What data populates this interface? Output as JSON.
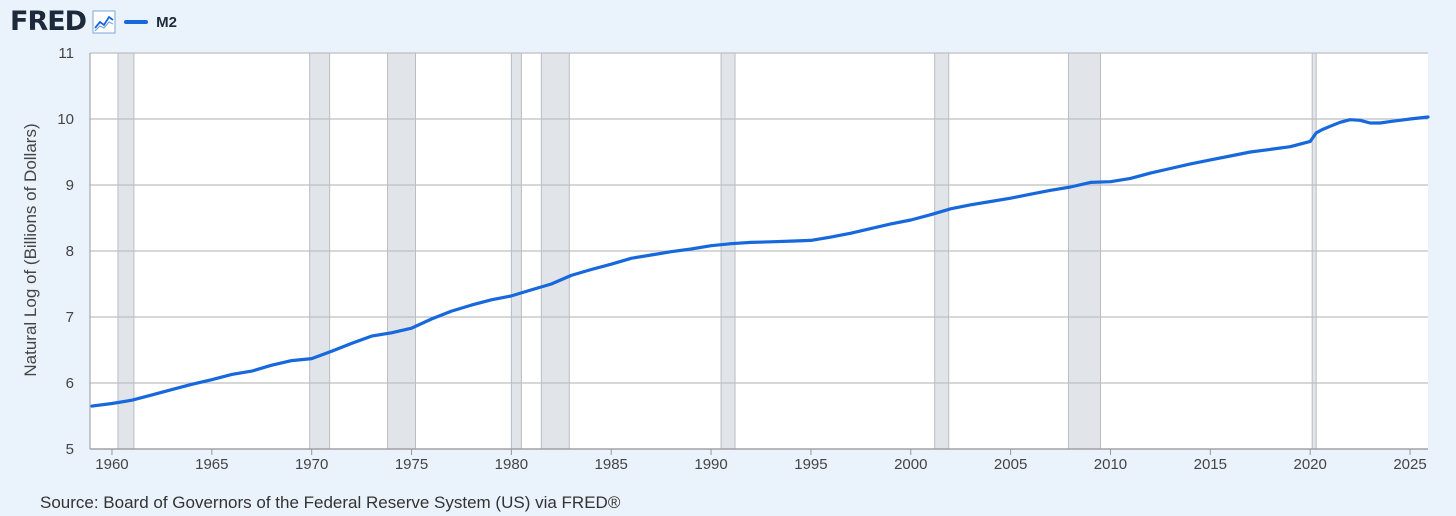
{
  "header": {
    "brand": "FRED",
    "brand_icon": "line-chart-icon"
  },
  "chart_data": {
    "type": "line",
    "title": "",
    "xlabel": "",
    "ylabel": "Natural Log of (Billions of Dollars)",
    "xlim": [
      1958.9,
      2025.9
    ],
    "ylim": [
      5,
      11
    ],
    "yticks": [
      "5",
      "6",
      "7",
      "8",
      "9",
      "10",
      "11"
    ],
    "xticks": [
      "1960",
      "1965",
      "1970",
      "1975",
      "1980",
      "1985",
      "1990",
      "1995",
      "2000",
      "2005",
      "2010",
      "2015",
      "2020",
      "2025"
    ],
    "grid": true,
    "legend_position": "top-left",
    "series": [
      {
        "name": "M2",
        "color": "#1668dc",
        "x": [
          1959.0,
          1960.0,
          1961.0,
          1962.0,
          1963.0,
          1964.0,
          1965.0,
          1966.0,
          1967.0,
          1968.0,
          1969.0,
          1970.0,
          1971.0,
          1972.0,
          1973.0,
          1974.0,
          1975.0,
          1976.0,
          1977.0,
          1978.0,
          1979.0,
          1980.0,
          1981.0,
          1982.0,
          1983.0,
          1984.0,
          1985.0,
          1986.0,
          1987.0,
          1988.0,
          1989.0,
          1990.0,
          1991.0,
          1992.0,
          1993.0,
          1994.0,
          1995.0,
          1996.0,
          1997.0,
          1998.0,
          1999.0,
          2000.0,
          2001.0,
          2002.0,
          2003.0,
          2004.0,
          2005.0,
          2006.0,
          2007.0,
          2008.0,
          2009.0,
          2010.0,
          2011.0,
          2012.0,
          2013.0,
          2014.0,
          2015.0,
          2016.0,
          2017.0,
          2018.0,
          2019.0,
          2020.0,
          2020.3,
          2020.6,
          2021.0,
          2021.5,
          2022.0,
          2022.5,
          2023.0,
          2023.5,
          2024.0,
          2024.5,
          2025.0,
          2025.9
        ],
        "y": [
          5.65,
          5.69,
          5.74,
          5.82,
          5.9,
          5.98,
          6.05,
          6.13,
          6.18,
          6.27,
          6.34,
          6.37,
          6.48,
          6.6,
          6.71,
          6.76,
          6.83,
          6.97,
          7.09,
          7.18,
          7.26,
          7.32,
          7.41,
          7.5,
          7.63,
          7.72,
          7.8,
          7.89,
          7.94,
          7.99,
          8.03,
          8.08,
          8.11,
          8.13,
          8.14,
          8.15,
          8.16,
          8.21,
          8.27,
          8.34,
          8.41,
          8.47,
          8.55,
          8.64,
          8.7,
          8.75,
          8.8,
          8.86,
          8.92,
          8.97,
          9.04,
          9.05,
          9.1,
          9.18,
          9.25,
          9.32,
          9.38,
          9.44,
          9.5,
          9.54,
          9.58,
          9.66,
          9.79,
          9.84,
          9.89,
          9.95,
          9.99,
          9.98,
          9.94,
          9.94,
          9.96,
          9.98,
          10.0,
          10.03
        ]
      }
    ],
    "recession_bands": [
      [
        1960.3,
        1961.1
      ],
      [
        1969.9,
        1970.9
      ],
      [
        1973.8,
        1975.2
      ],
      [
        1980.0,
        1980.5
      ],
      [
        1981.5,
        1982.9
      ],
      [
        1990.5,
        1991.2
      ],
      [
        2001.2,
        2001.9
      ],
      [
        2007.9,
        2009.5
      ],
      [
        2020.1,
        2020.3
      ]
    ]
  },
  "footer": {
    "source": "Source: Board of Governors of the Federal Reserve System (US) via FRED®"
  }
}
